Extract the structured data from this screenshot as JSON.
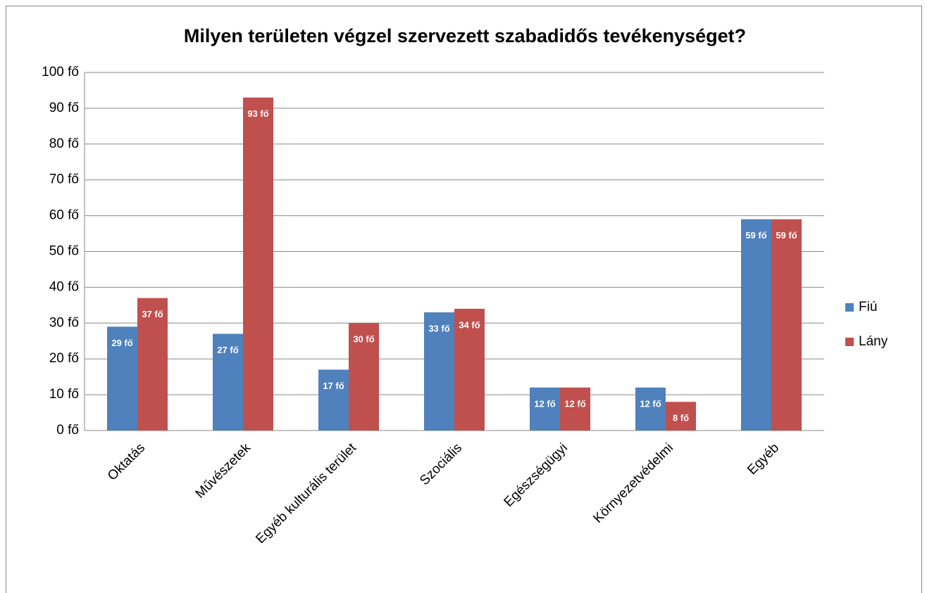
{
  "chart_data": {
    "type": "bar",
    "title": "Milyen területen végzel szervezett szabadidős tevékenységet?",
    "categories": [
      "Oktatás",
      "Művészetek",
      "Egyéb kulturális terület",
      "Szociális",
      "Egészségügyi",
      "Környezetvédelmi",
      "Egyéb"
    ],
    "series": [
      {
        "name": "Fiú",
        "color": "#4f81bd",
        "values": [
          29,
          27,
          17,
          33,
          12,
          12,
          59
        ],
        "value_labels": [
          "29 fő",
          "27 fő",
          "17 fő",
          "33 fő",
          "12 fő",
          "12 fő",
          "59 fő"
        ]
      },
      {
        "name": "Lány",
        "color": "#c0504d",
        "values": [
          37,
          93,
          30,
          34,
          12,
          8,
          59
        ],
        "value_labels": [
          "37 fő",
          "93 fő",
          "30 fő",
          "34 fő",
          "12 fő",
          "8 fő",
          "59 fő"
        ]
      }
    ],
    "ylim": [
      0,
      100
    ],
    "yticks": [
      {
        "value": 0,
        "label": "0 fő"
      },
      {
        "value": 10,
        "label": "10 fő"
      },
      {
        "value": 20,
        "label": "20 fő"
      },
      {
        "value": 30,
        "label": "30 fő"
      },
      {
        "value": 40,
        "label": "40 fő"
      },
      {
        "value": 50,
        "label": "50 fő"
      },
      {
        "value": 60,
        "label": "60 fő"
      },
      {
        "value": 70,
        "label": "70 fő"
      },
      {
        "value": 80,
        "label": "80 fő"
      },
      {
        "value": 90,
        "label": "90 fő"
      },
      {
        "value": 100,
        "label": "100 fő"
      }
    ],
    "grid": true,
    "legend": "right"
  }
}
